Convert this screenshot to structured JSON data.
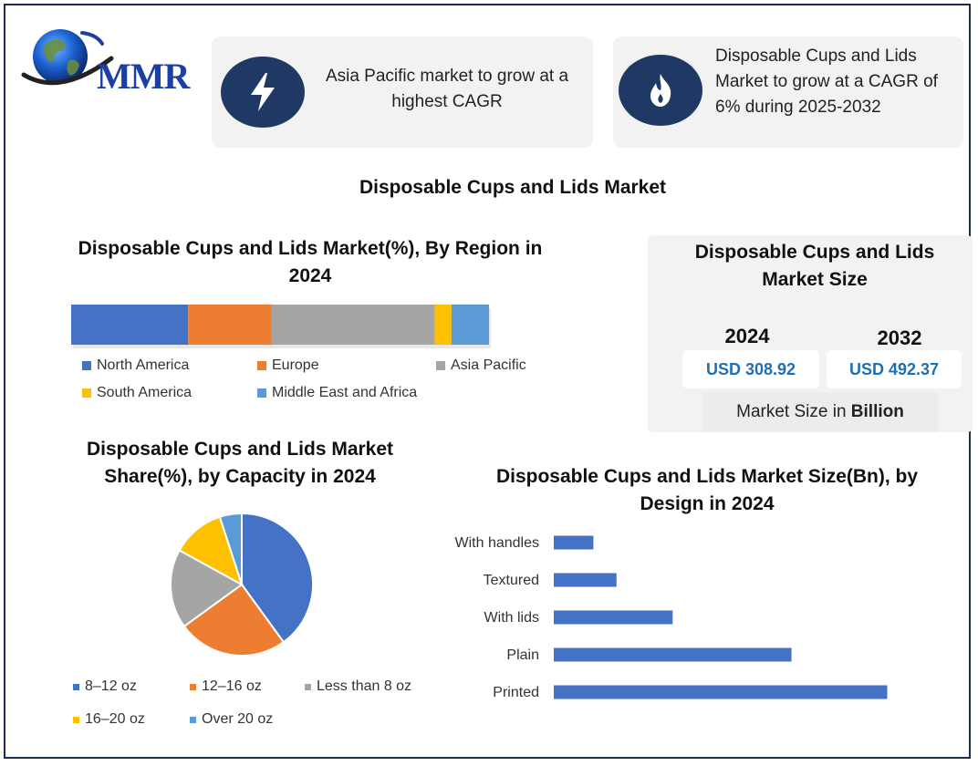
{
  "header": {
    "logo_text": "MMR",
    "card1_text": "Asia Pacific market to grow at a highest CAGR",
    "card1_icon": "lightning-icon",
    "card2_text": "Disposable Cups and Lids Market to grow at a CAGR of 6% during 2025-2032",
    "card2_icon": "flame-icon"
  },
  "main_title": "Disposable Cups and Lids Market",
  "market_size": {
    "title": "Disposable Cups and Lids Market Size",
    "year1": "2024",
    "value1": "USD 308.92",
    "year2": "2032",
    "value2": "USD 492.37",
    "footer_prefix": "Market Size in ",
    "footer_bold": "Billion"
  },
  "colors": {
    "blue": "#4472c4",
    "orange": "#ed7d31",
    "gray": "#a5a5a5",
    "yellow": "#ffc000",
    "lightblue": "#5b9bd5",
    "navy": "#1f3864"
  },
  "chart_data": [
    {
      "type": "bar",
      "orientation": "stacked-horizontal",
      "title": "Disposable Cups and Lids Market(%), By Region in 2024",
      "series": [
        {
          "name": "North America",
          "value": 28,
          "color": "#4472c4"
        },
        {
          "name": "Europe",
          "value": 20,
          "color": "#ed7d31"
        },
        {
          "name": "Asia Pacific",
          "value": 39,
          "color": "#a5a5a5"
        },
        {
          "name": "South America",
          "value": 4,
          "color": "#ffc000"
        },
        {
          "name": "Middle East and Africa",
          "value": 9,
          "color": "#5b9bd5"
        }
      ],
      "legend": "bottom"
    },
    {
      "type": "pie",
      "title": "Disposable Cups and Lids Market Share(%), by Capacity in 2024",
      "slices": [
        {
          "name": "8–12 oz",
          "value": 40,
          "color": "#4472c4"
        },
        {
          "name": "12–16 oz",
          "value": 25,
          "color": "#ed7d31"
        },
        {
          "name": "Less than 8 oz",
          "value": 18,
          "color": "#a5a5a5"
        },
        {
          "name": "16–20 oz",
          "value": 12,
          "color": "#ffc000"
        },
        {
          "name": "Over 20 oz",
          "value": 5,
          "color": "#5b9bd5"
        }
      ],
      "legend": "bottom"
    },
    {
      "type": "bar",
      "orientation": "horizontal",
      "title": "Disposable Cups and Lids Market Size(Bn), by Design in 2024",
      "categories": [
        "With handles",
        "Textured",
        "With lids",
        "Plain",
        "Printed"
      ],
      "values": [
        12,
        19,
        36,
        72,
        101
      ],
      "xlim": [
        0,
        105
      ],
      "color": "#4472c4",
      "grid": false
    }
  ]
}
